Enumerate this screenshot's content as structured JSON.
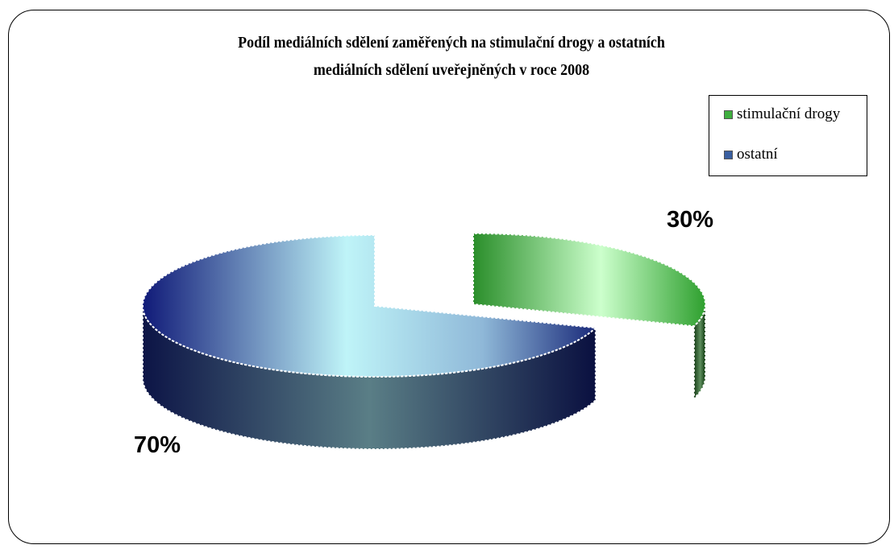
{
  "chart_data": {
    "type": "pie",
    "title": "Podíl mediálních sdělení zaměřených na stimulační drogy a ostatních mediálních sdělení uveřejněných v roce 2008",
    "title_lines": [
      "Podíl mediálních sdělení zaměřených na stimulační drogy a ostatních",
      "mediálních sdělení uveřejněných v roce 2008"
    ],
    "style": "3d-exploded",
    "legend_position": "top-right",
    "slices": [
      {
        "name": "stimulační drogy",
        "value": 30,
        "label": "30%",
        "color": "#2e9a2e",
        "exploded": true
      },
      {
        "name": "ostatní",
        "value": 70,
        "label": "70%",
        "color": "#1c2a7a",
        "exploded": false
      }
    ]
  }
}
